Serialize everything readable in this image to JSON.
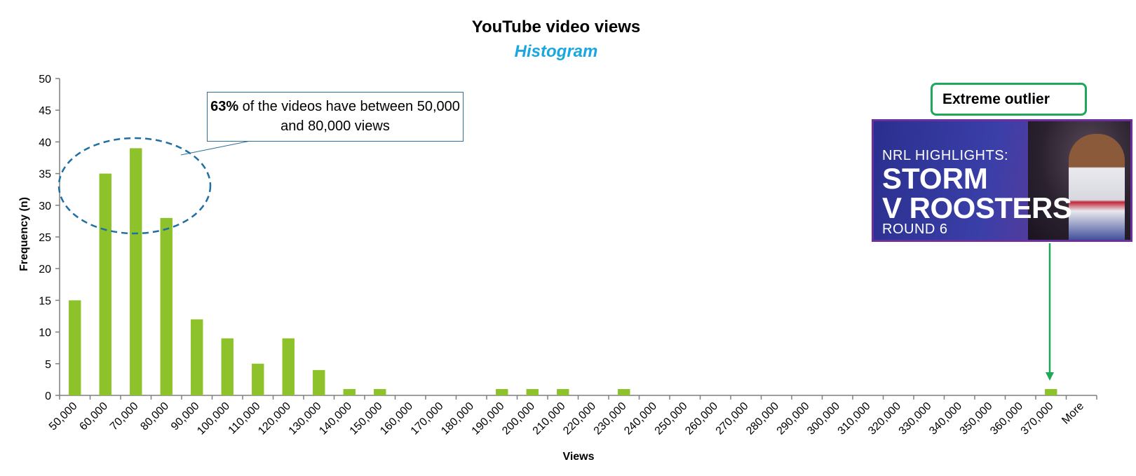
{
  "colors": {
    "bar": "#8dc22a",
    "axis": "#7f7f7f",
    "subtitle": "#1aa7e0",
    "ellipse": "#1f6fa3",
    "callout_border": "#2e6f99",
    "outlier_border": "#1fa85a",
    "thumbnail_border": "#6b2fa0"
  },
  "chart_data": {
    "type": "bar",
    "title": "YouTube video views",
    "subtitle": "Histogram",
    "xlabel": "Views",
    "ylabel": "Frequency (n)",
    "ylim": [
      0,
      50
    ],
    "yticks": [
      0,
      5,
      10,
      15,
      20,
      25,
      30,
      35,
      40,
      45,
      50
    ],
    "grid": false,
    "legend": "none",
    "categories": [
      "50,000",
      "60,000",
      "70,000",
      "80,000",
      "90,000",
      "100,000",
      "110,000",
      "120,000",
      "130,000",
      "140,000",
      "150,000",
      "160,000",
      "170,000",
      "180,000",
      "190,000",
      "200,000",
      "210,000",
      "220,000",
      "230,000",
      "240,000",
      "250,000",
      "260,000",
      "270,000",
      "280,000",
      "290,000",
      "300,000",
      "310,000",
      "320,000",
      "330,000",
      "340,000",
      "350,000",
      "360,000",
      "370,000",
      "More"
    ],
    "values": [
      15,
      35,
      39,
      28,
      12,
      9,
      5,
      9,
      4,
      1,
      1,
      0,
      0,
      0,
      1,
      1,
      1,
      0,
      1,
      0,
      0,
      0,
      0,
      0,
      0,
      0,
      0,
      0,
      0,
      0,
      0,
      0,
      1,
      0
    ]
  },
  "annotations": {
    "callout_bold": "63%",
    "callout_rest": " of the videos have between 50,000 and 80,000 views",
    "outlier_label": "Extreme outlier",
    "thumbnail": {
      "line1": "NRL HIGHLIGHTS:",
      "line2": "STORM",
      "line3": "V ROOSTERS",
      "line4": "ROUND 6"
    }
  }
}
